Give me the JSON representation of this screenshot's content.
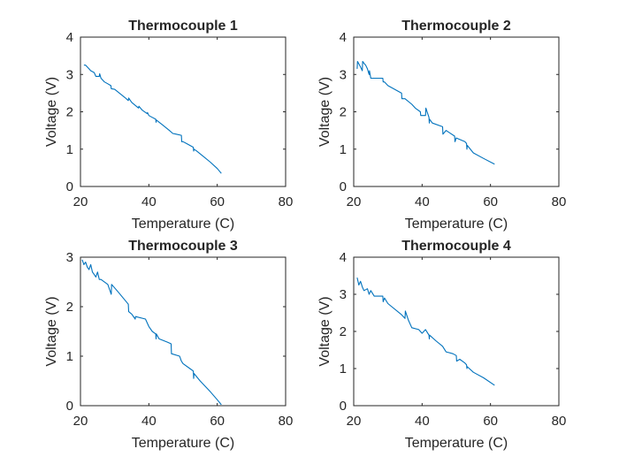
{
  "chart_data": [
    {
      "type": "line",
      "title": "Thermocouple 1",
      "xlabel": "Temperature (C)",
      "ylabel": "Voltage (V)",
      "xlim": [
        20,
        80
      ],
      "ylim": [
        0,
        4
      ],
      "xticks": [
        "20",
        "40",
        "60",
        "80"
      ],
      "yticks": [
        "0",
        "1",
        "2",
        "3",
        "4"
      ],
      "series": [
        {
          "color": "#0072bd",
          "x": [
            21.0,
            21.5,
            22.5,
            23.0,
            24.0,
            24.5,
            25.5,
            25.6,
            26.0,
            27.0,
            28.0,
            28.9,
            29.0,
            30.0,
            33.0,
            34.0,
            34.1,
            35.0,
            37.0,
            37.1,
            38.0,
            39.5,
            39.6,
            40.0,
            41.0,
            42.0,
            42.1,
            42.2,
            44.0,
            46.0,
            47.0,
            48.0,
            49.5,
            49.6,
            50.0,
            51.0,
            53.0,
            53.1,
            53.2,
            54.0,
            56.0,
            58.0,
            60.0,
            61.2
          ],
          "y": [
            3.25,
            3.25,
            3.15,
            3.1,
            3.05,
            2.95,
            2.95,
            3.02,
            2.9,
            2.8,
            2.75,
            2.7,
            2.62,
            2.6,
            2.38,
            2.3,
            2.37,
            2.25,
            2.1,
            2.15,
            2.05,
            1.95,
            1.98,
            1.9,
            1.85,
            1.8,
            1.72,
            1.78,
            1.65,
            1.5,
            1.42,
            1.4,
            1.37,
            1.2,
            1.2,
            1.15,
            1.05,
            0.95,
            1.0,
            0.95,
            0.8,
            0.65,
            0.48,
            0.35
          ]
        }
      ]
    },
    {
      "type": "line",
      "title": "Thermocouple 2",
      "xlabel": "Temperature (C)",
      "ylabel": "Voltage (V)",
      "xlim": [
        20,
        80
      ],
      "ylim": [
        0,
        4
      ],
      "xticks": [
        "20",
        "40",
        "60",
        "80"
      ],
      "yticks": [
        "0",
        "1",
        "2",
        "3",
        "4"
      ],
      "series": [
        {
          "color": "#0072bd",
          "x": [
            21.0,
            21.1,
            22.0,
            22.5,
            22.6,
            23.0,
            23.5,
            24.0,
            24.5,
            24.6,
            25.0,
            28.5,
            28.6,
            29.0,
            30.0,
            34.0,
            34.1,
            35.0,
            37.0,
            38.0,
            39.5,
            39.6,
            41.0,
            41.1,
            42.0,
            42.1,
            42.2,
            43.0,
            46.0,
            46.1,
            47.0,
            49.5,
            49.6,
            50.0,
            52.5,
            53.0,
            53.1,
            53.2,
            55.0,
            58.0,
            61.2
          ],
          "y": [
            3.15,
            3.35,
            3.2,
            3.1,
            3.35,
            3.3,
            3.25,
            3.15,
            3.0,
            3.1,
            2.9,
            2.9,
            2.8,
            2.8,
            2.7,
            2.5,
            2.35,
            2.35,
            2.2,
            2.1,
            2.0,
            1.9,
            1.9,
            2.1,
            1.85,
            1.7,
            1.8,
            1.7,
            1.6,
            1.4,
            1.5,
            1.35,
            1.2,
            1.3,
            1.2,
            1.15,
            1.0,
            1.1,
            0.9,
            0.75,
            0.6
          ]
        }
      ]
    },
    {
      "type": "line",
      "title": "Thermocouple 3",
      "xlabel": "Temperature (C)",
      "ylabel": "Voltage (V)",
      "xlim": [
        20,
        80
      ],
      "ylim": [
        0,
        3
      ],
      "xticks": [
        "20",
        "40",
        "60",
        "80"
      ],
      "yticks": [
        "0",
        "1",
        "2",
        "3"
      ],
      "series": [
        {
          "color": "#0072bd",
          "x": [
            20.5,
            21.0,
            21.5,
            22.0,
            22.5,
            23.0,
            23.5,
            24.0,
            24.5,
            25.0,
            25.5,
            26.0,
            28.0,
            29.0,
            29.1,
            31.0,
            34.0,
            34.1,
            35.0,
            36.0,
            36.1,
            39.0,
            40.0,
            41.0,
            42.0,
            42.1,
            42.2,
            43.0,
            45.5,
            46.5,
            46.6,
            49.0,
            49.5,
            50.0,
            52.0,
            53.0,
            53.1,
            53.2,
            55.0,
            58.0,
            60.0,
            61.2
          ],
          "y": [
            2.95,
            2.85,
            2.9,
            2.8,
            2.75,
            2.85,
            2.7,
            2.65,
            2.6,
            2.7,
            2.55,
            2.55,
            2.45,
            2.25,
            2.45,
            2.3,
            2.05,
            1.9,
            1.85,
            1.75,
            1.8,
            1.75,
            1.6,
            1.5,
            1.45,
            1.35,
            1.45,
            1.35,
            1.28,
            1.25,
            1.05,
            1.0,
            0.9,
            0.85,
            0.75,
            0.7,
            0.55,
            0.65,
            0.5,
            0.28,
            0.12,
            0.02
          ]
        }
      ]
    },
    {
      "type": "line",
      "title": "Thermocouple 4",
      "xlabel": "Temperature (C)",
      "ylabel": "Voltage (V)",
      "xlim": [
        20,
        80
      ],
      "ylim": [
        0,
        4
      ],
      "xticks": [
        "20",
        "40",
        "60",
        "80"
      ],
      "yticks": [
        "0",
        "1",
        "2",
        "3",
        "4"
      ],
      "series": [
        {
          "color": "#0072bd",
          "x": [
            21.0,
            21.5,
            22.0,
            22.5,
            23.0,
            24.0,
            24.5,
            25.0,
            26.0,
            28.5,
            28.6,
            29.0,
            30.0,
            34.0,
            35.0,
            35.1,
            36.0,
            37.0,
            39.0,
            40.0,
            41.0,
            42.0,
            42.1,
            42.2,
            44.0,
            46.0,
            47.0,
            49.0,
            50.0,
            50.1,
            51.0,
            52.5,
            53.0,
            53.1,
            53.2,
            55.0,
            58.0,
            61.2
          ],
          "y": [
            3.45,
            3.25,
            3.35,
            3.2,
            3.1,
            3.15,
            3.0,
            3.1,
            2.95,
            2.95,
            2.8,
            2.9,
            2.75,
            2.45,
            2.35,
            2.55,
            2.3,
            2.1,
            2.05,
            1.95,
            2.05,
            1.9,
            1.8,
            1.9,
            1.75,
            1.6,
            1.45,
            1.4,
            1.35,
            1.2,
            1.25,
            1.15,
            1.1,
            1.0,
            1.05,
            0.9,
            0.75,
            0.55
          ]
        }
      ]
    }
  ]
}
